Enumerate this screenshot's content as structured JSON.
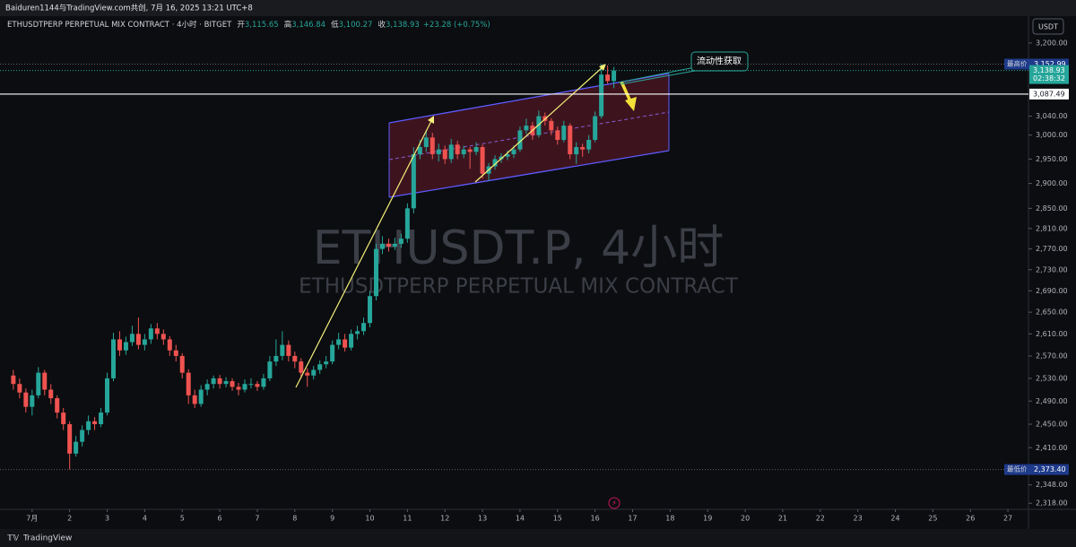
{
  "attribution": "Baiduren1144与TradingView.com共创, 7月 16, 2025 13:21 UTC+8",
  "footer": "TradingView",
  "chart_data": {
    "type": "candlestick",
    "title": "ETHUSDTPERP PERPETUAL MIX CONTRACT · 4小时 · BITGET",
    "ohlc_header": [
      {
        "name": "开",
        "value": "3,115.65"
      },
      {
        "name": "高",
        "value": "3,146.84"
      },
      {
        "name": "低",
        "value": "3,100.27"
      },
      {
        "name": "收",
        "value": "3,138.93"
      }
    ],
    "change": "+23.28 (+0.75%)",
    "watermark": "ETHUSDT.P, 4小时",
    "watermark_subtitle": "ETHUSDTPERP PERPETUAL MIX CONTRACT",
    "currency": "USDT",
    "annotation": "流动性获取",
    "up_color": "#26a69a",
    "down_color": "#ef5350",
    "log_scale": true,
    "grid": false,
    "ylim": [
      2298,
      3216
    ],
    "xlim": [
      -3.7,
      159
    ],
    "yticks": [
      {
        "value": 2318,
        "label": "2,318.00"
      },
      {
        "value": 2348,
        "label": "2,348.00"
      },
      {
        "value": 2410,
        "label": "2,410.00"
      },
      {
        "value": 2450,
        "label": "2,450.00"
      },
      {
        "value": 2490,
        "label": "2,490.00"
      },
      {
        "value": 2530,
        "label": "2,530.00"
      },
      {
        "value": 2570,
        "label": "2,570.00"
      },
      {
        "value": 2610,
        "label": "2,610.00"
      },
      {
        "value": 2650,
        "label": "2,650.00"
      },
      {
        "value": 2690,
        "label": "2,690.00"
      },
      {
        "value": 2730,
        "label": "2,730.00"
      },
      {
        "value": 2770,
        "label": "2,770.00"
      },
      {
        "value": 2810,
        "label": "2,810.00"
      },
      {
        "value": 2850,
        "label": "2,850.00"
      },
      {
        "value": 2900,
        "label": "2,900.00"
      },
      {
        "value": 2950,
        "label": "2,950.00"
      },
      {
        "value": 3000,
        "label": "3,000.00"
      },
      {
        "value": 3040,
        "label": "3,040.00"
      },
      {
        "value": 3200,
        "label": "3,200.00"
      }
    ],
    "xticks": [
      {
        "value": 0,
        "label": "7月"
      },
      {
        "value": 6,
        "label": "2"
      },
      {
        "value": 12,
        "label": "3"
      },
      {
        "value": 18,
        "label": "4"
      },
      {
        "value": 24,
        "label": "5"
      },
      {
        "value": 30,
        "label": "6"
      },
      {
        "value": 36,
        "label": "7"
      },
      {
        "value": 42,
        "label": "8"
      },
      {
        "value": 48,
        "label": "9"
      },
      {
        "value": 54,
        "label": "10"
      },
      {
        "value": 60,
        "label": "11"
      },
      {
        "value": 66,
        "label": "12"
      },
      {
        "value": 72,
        "label": "13"
      },
      {
        "value": 78,
        "label": "14"
      },
      {
        "value": 84,
        "label": "15"
      },
      {
        "value": 90,
        "label": "16"
      },
      {
        "value": 96,
        "label": "17"
      },
      {
        "value": 102,
        "label": "18"
      },
      {
        "value": 108,
        "label": "19"
      },
      {
        "value": 114,
        "label": "20"
      },
      {
        "value": 120,
        "label": "21"
      },
      {
        "value": 126,
        "label": "22"
      },
      {
        "value": 132,
        "label": "23"
      },
      {
        "value": 138,
        "label": "24"
      },
      {
        "value": 144,
        "label": "25"
      },
      {
        "value": 150,
        "label": "26"
      },
      {
        "value": 156,
        "label": "27"
      }
    ],
    "high_marker": {
      "name": "最高价",
      "value": 3152.99,
      "label": "3,152.99"
    },
    "low_marker": {
      "name": "最低价",
      "value": 2373.4,
      "label": "2,373.40"
    },
    "last_price": {
      "value": 3138.93,
      "label": "3,138.93",
      "countdown": "02:38:32"
    },
    "hline": {
      "value": 3087.49,
      "label": "3,087.49"
    },
    "x": [
      -3,
      -2,
      -1,
      0,
      1,
      2,
      3,
      4,
      5,
      6,
      7,
      8,
      9,
      10,
      11,
      12,
      13,
      14,
      15,
      16,
      17,
      18,
      19,
      20,
      21,
      22,
      23,
      24,
      25,
      26,
      27,
      28,
      29,
      30,
      31,
      32,
      33,
      34,
      35,
      36,
      37,
      38,
      39,
      40,
      41,
      42,
      43,
      44,
      45,
      46,
      47,
      48,
      49,
      50,
      51,
      52,
      53,
      54,
      55,
      56,
      57,
      58,
      59,
      60,
      61,
      62,
      63,
      64,
      65,
      66,
      67,
      68,
      69,
      70,
      71,
      72,
      73,
      74,
      75,
      76,
      77,
      78,
      79,
      80,
      81,
      82,
      83,
      84,
      85,
      86,
      87,
      88,
      89,
      90,
      91,
      92,
      93
    ],
    "candles": [
      [
        2535,
        2545,
        2510,
        2520
      ],
      [
        2520,
        2530,
        2495,
        2505
      ],
      [
        2505,
        2512,
        2470,
        2480
      ],
      [
        2480,
        2510,
        2465,
        2500
      ],
      [
        2500,
        2550,
        2495,
        2540
      ],
      [
        2540,
        2545,
        2500,
        2510
      ],
      [
        2510,
        2520,
        2485,
        2495
      ],
      [
        2495,
        2500,
        2460,
        2470
      ],
      [
        2470,
        2478,
        2440,
        2450
      ],
      [
        2450,
        2455,
        2373.4,
        2400
      ],
      [
        2400,
        2430,
        2395,
        2420
      ],
      [
        2420,
        2448,
        2412,
        2440
      ],
      [
        2440,
        2465,
        2432,
        2455
      ],
      [
        2455,
        2462,
        2440,
        2450
      ],
      [
        2450,
        2478,
        2445,
        2470
      ],
      [
        2470,
        2540,
        2465,
        2530
      ],
      [
        2530,
        2612,
        2525,
        2600
      ],
      [
        2600,
        2615,
        2570,
        2580
      ],
      [
        2580,
        2605,
        2572,
        2595
      ],
      [
        2595,
        2625,
        2588,
        2610
      ],
      [
        2610,
        2640,
        2582,
        2590
      ],
      [
        2590,
        2610,
        2580,
        2600
      ],
      [
        2600,
        2628,
        2592,
        2620
      ],
      [
        2620,
        2630,
        2600,
        2610
      ],
      [
        2610,
        2618,
        2590,
        2600
      ],
      [
        2600,
        2606,
        2570,
        2580
      ],
      [
        2580,
        2590,
        2560,
        2570
      ],
      [
        2570,
        2575,
        2530,
        2540
      ],
      [
        2540,
        2546,
        2485,
        2500
      ],
      [
        2500,
        2510,
        2478,
        2485
      ],
      [
        2485,
        2518,
        2480,
        2510
      ],
      [
        2510,
        2528,
        2500,
        2520
      ],
      [
        2520,
        2535,
        2512,
        2530
      ],
      [
        2530,
        2536,
        2512,
        2520
      ],
      [
        2520,
        2532,
        2514,
        2525
      ],
      [
        2525,
        2530,
        2508,
        2515
      ],
      [
        2515,
        2522,
        2500,
        2510
      ],
      [
        2510,
        2528,
        2505,
        2520
      ],
      [
        2520,
        2530,
        2512,
        2520
      ],
      [
        2520,
        2525,
        2508,
        2515
      ],
      [
        2515,
        2538,
        2510,
        2530
      ],
      [
        2530,
        2570,
        2525,
        2560
      ],
      [
        2560,
        2600,
        2552,
        2570
      ],
      [
        2570,
        2615,
        2562,
        2590
      ],
      [
        2590,
        2598,
        2560,
        2570
      ],
      [
        2570,
        2578,
        2548,
        2560
      ],
      [
        2560,
        2566,
        2530,
        2540
      ],
      [
        2540,
        2548,
        2515,
        2535
      ],
      [
        2535,
        2552,
        2528,
        2545
      ],
      [
        2545,
        2562,
        2538,
        2555
      ],
      [
        2555,
        2570,
        2548,
        2560
      ],
      [
        2560,
        2598,
        2555,
        2590
      ],
      [
        2590,
        2612,
        2582,
        2600
      ],
      [
        2600,
        2610,
        2578,
        2585
      ],
      [
        2585,
        2618,
        2580,
        2610
      ],
      [
        2610,
        2625,
        2600,
        2615
      ],
      [
        2615,
        2640,
        2608,
        2630
      ],
      [
        2630,
        2690,
        2622,
        2680
      ],
      [
        2680,
        2780,
        2672,
        2770
      ],
      [
        2770,
        2795,
        2760,
        2780
      ],
      [
        2780,
        2790,
        2765,
        2775
      ],
      [
        2775,
        2792,
        2768,
        2780
      ],
      [
        2780,
        2800,
        2772,
        2790
      ],
      [
        2790,
        2860,
        2782,
        2850
      ],
      [
        2850,
        2975,
        2840,
        2960
      ],
      [
        2960,
        2990,
        2950,
        2975
      ],
      [
        2975,
        3010,
        2965,
        2995
      ],
      [
        2995,
        3005,
        2950,
        2960
      ],
      [
        2960,
        2982,
        2945,
        2970
      ],
      [
        2970,
        2978,
        2940,
        2950
      ],
      [
        2950,
        2992,
        2942,
        2980
      ],
      [
        2980,
        2988,
        2950,
        2960
      ],
      [
        2960,
        2978,
        2952,
        2970
      ],
      [
        2970,
        2975,
        2930,
        2965
      ],
      [
        2965,
        2985,
        2958,
        2975
      ],
      [
        2975,
        2980,
        2910,
        2920
      ],
      [
        2920,
        2942,
        2905,
        2935
      ],
      [
        2935,
        2958,
        2928,
        2950
      ],
      [
        2950,
        2962,
        2942,
        2955
      ],
      [
        2955,
        2968,
        2948,
        2960
      ],
      [
        2960,
        2978,
        2952,
        2970
      ],
      [
        2970,
        3018,
        2965,
        3010
      ],
      [
        3010,
        3035,
        3002,
        3020
      ],
      [
        3020,
        3028,
        2990,
        3000
      ],
      [
        3000,
        3052,
        2995,
        3040
      ],
      [
        3040,
        3048,
        3020,
        3030
      ],
      [
        3030,
        3036,
        3000,
        3010
      ],
      [
        3010,
        3018,
        2980,
        2990
      ],
      [
        2990,
        3030,
        2985,
        3020
      ],
      [
        3020,
        3025,
        2950,
        2960
      ],
      [
        2960,
        2985,
        2940,
        2975
      ],
      [
        2975,
        2982,
        2955,
        2970
      ],
      [
        2970,
        3000,
        2962,
        2990
      ],
      [
        2990,
        3050,
        2985,
        3040
      ],
      [
        3040,
        3152.99,
        3035,
        3130
      ],
      [
        3130,
        3150,
        3110,
        3115.65
      ],
      [
        3115.65,
        3146.84,
        3100.27,
        3138.93
      ]
    ]
  }
}
